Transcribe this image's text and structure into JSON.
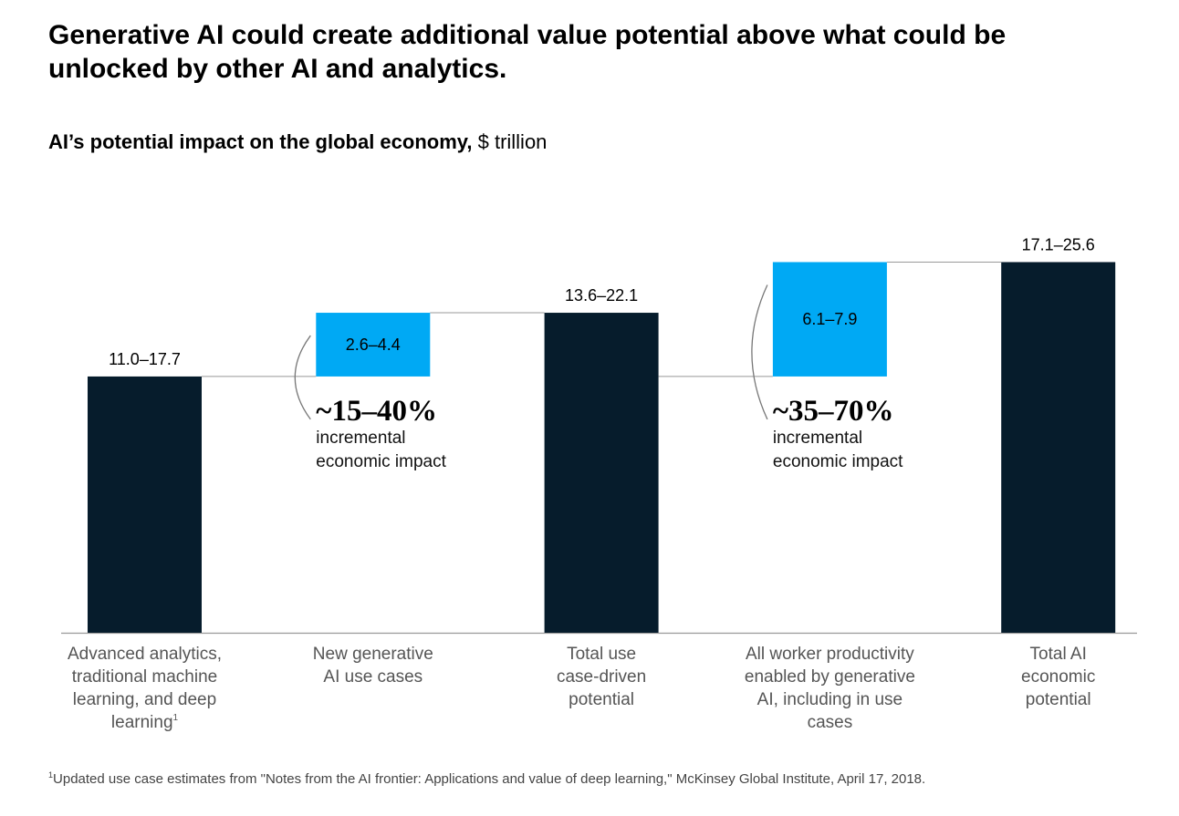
{
  "title": "Generative AI could create additional value potential above what could be unlocked by other AI and analytics.",
  "subtitle": {
    "bold": "AI’s potential impact on the global economy,",
    "unit": " $ trillion"
  },
  "chart_data": {
    "type": "bar",
    "subtype": "waterfall",
    "categories": [
      [
        "Advanced analytics,",
        "traditional machine",
        "learning, and deep",
        "learning"
      ],
      [
        "New generative",
        "AI use cases"
      ],
      [
        "Total use",
        "case-driven",
        "potential"
      ],
      [
        "All worker productivity",
        "enabled by generative",
        "AI, including in use",
        "cases"
      ],
      [
        "Total AI",
        "economic",
        "potential"
      ]
    ],
    "category_footnote_marks": [
      "1",
      "",
      "",
      "",
      ""
    ],
    "bars": [
      {
        "label": "11.0–17.7",
        "low": 11.0,
        "high": 17.7,
        "base": 0,
        "top": 17.7,
        "kind": "total",
        "color": "#061c2c"
      },
      {
        "label": "2.6–4.4",
        "low": 2.6,
        "high": 4.4,
        "base": 17.7,
        "top": 22.1,
        "kind": "increment",
        "color": "#00a9f4"
      },
      {
        "label": "13.6–22.1",
        "low": 13.6,
        "high": 22.1,
        "base": 0,
        "top": 22.1,
        "kind": "total",
        "color": "#061c2c"
      },
      {
        "label": "6.1–7.9",
        "low": 6.1,
        "high": 7.9,
        "base": 17.7,
        "top": 25.6,
        "kind": "increment",
        "color": "#00a9f4"
      },
      {
        "label": "17.1–25.6",
        "low": 17.1,
        "high": 25.6,
        "base": 0,
        "top": 25.6,
        "kind": "total",
        "color": "#061c2c"
      }
    ],
    "annotations": [
      {
        "bar": 1,
        "value": "~15–40%",
        "text": [
          "incremental",
          "economic impact"
        ]
      },
      {
        "bar": 3,
        "value": "~35–70%",
        "text": [
          "incremental",
          "economic impact"
        ]
      }
    ],
    "grid": false,
    "legend": "none"
  },
  "footnote": {
    "mark": "1",
    "text": "Updated use case estimates from \"Notes from the AI frontier: Applications and value of deep learning,\" McKinsey Global Institute, April 17, 2018."
  }
}
